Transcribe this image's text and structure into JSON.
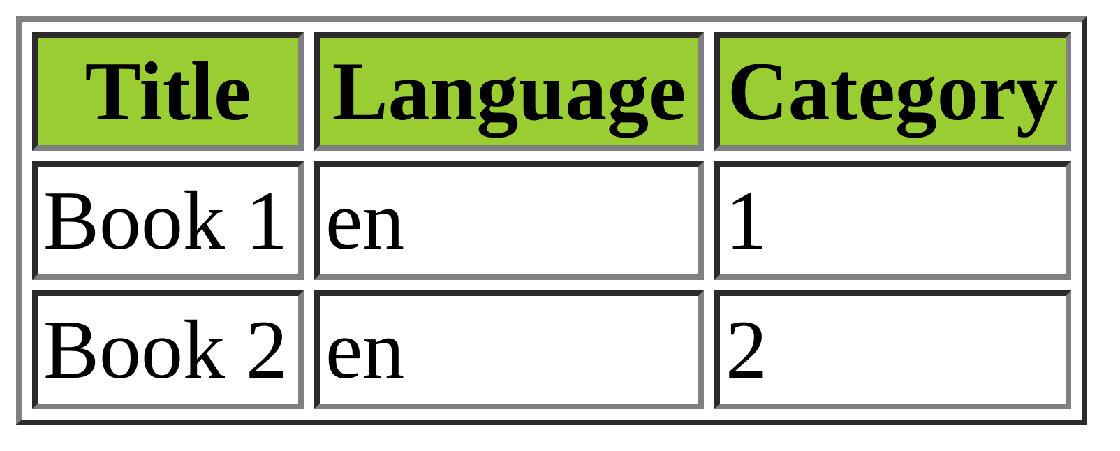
{
  "table": {
    "columns": [
      {
        "label": "Title"
      },
      {
        "label": "Language"
      },
      {
        "label": "Category"
      }
    ],
    "rows": [
      {
        "title": "Book 1",
        "language": "en",
        "category": "1"
      },
      {
        "title": "Book 2",
        "language": "en",
        "category": "2"
      }
    ],
    "colors": {
      "header_background": "#9acd32",
      "cell_background": "#ffffff",
      "border_light": "#808080",
      "border_dark": "#2b2b2b",
      "text": "#000000"
    }
  }
}
